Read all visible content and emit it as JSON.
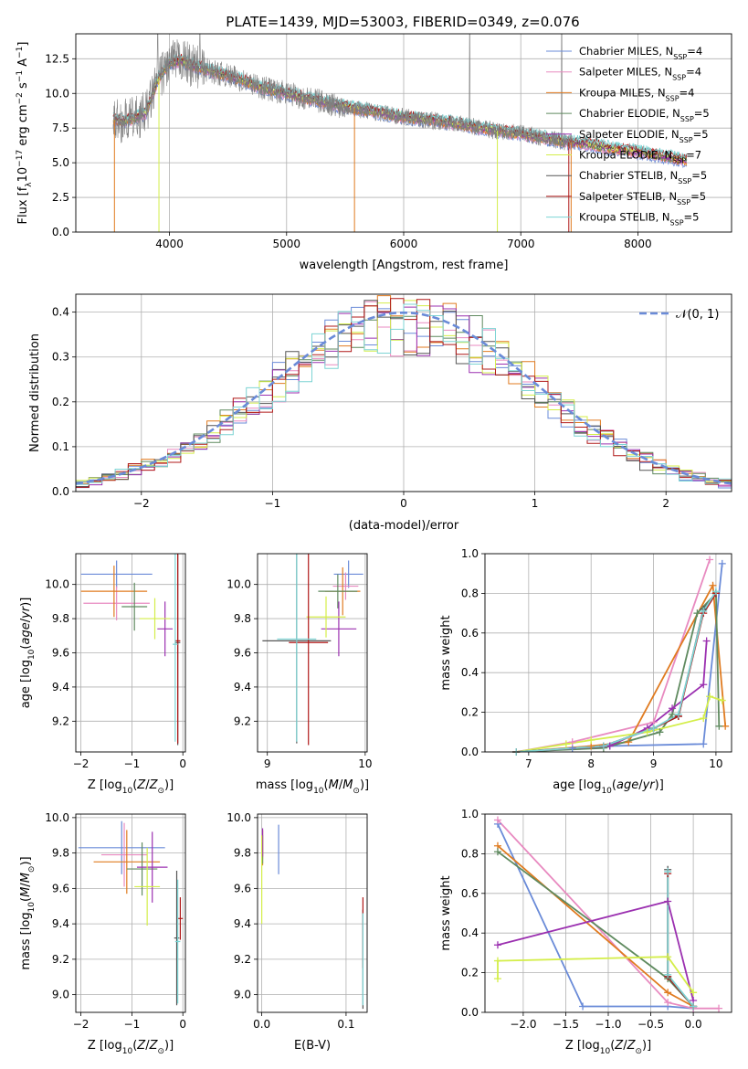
{
  "title": "PLATE=1439, MJD=53003, FIBERID=0349, z=0.076",
  "colors": {
    "Chabrier MILES": "#6a8bd8",
    "Salpeter MILES": "#e88ac0",
    "Kroupa MILES": "#e07b20",
    "Chabrier ELODIE": "#5f8a5f",
    "Salpeter ELODIE": "#9b30b0",
    "Kroupa ELODIE": "#d4ee4a",
    "Chabrier STELIB": "#555555",
    "Salpeter STELIB": "#b01818",
    "Kroupa STELIB": "#7dd4d4",
    "data": "#808080",
    "normal": "#6a8bd8",
    "grid": "#b0b0b0"
  },
  "chart_data": [
    {
      "type": "line",
      "name": "spectrum",
      "xlabel": "wavelength [Angstrom, rest frame]",
      "ylabel": "Flux [f_λ 10^-17 erg cm^-2 s^-1 A^-1]",
      "ylabel_parts": {
        "a": "Flux [f",
        "a_sub": "λ",
        "b": "10",
        "b_sup": "−17",
        "c": " erg cm",
        "c_sup": "−2",
        "d": " s",
        "d_sup": "−1",
        "e": " A",
        "e_sup": "−1",
        "f": "]"
      },
      "xlim": [
        3200,
        8800
      ],
      "ylim": [
        0,
        14.3
      ],
      "xticks": [
        4000,
        5000,
        6000,
        7000,
        8000
      ],
      "yticks": [
        0.0,
        2.5,
        5.0,
        7.5,
        10.0,
        12.5
      ],
      "legend_position": "upper right",
      "legend": [
        {
          "label": "Chabrier MILES, N",
          "sub": "SSP",
          "suffix": "=4"
        },
        {
          "label": "Salpeter MILES, N",
          "sub": "SSP",
          "suffix": "=4"
        },
        {
          "label": "Kroupa MILES, N",
          "sub": "SSP",
          "suffix": "=4"
        },
        {
          "label": "Chabrier ELODIE, N",
          "sub": "SSP",
          "suffix": "=5"
        },
        {
          "label": "Salpeter ELODIE, N",
          "sub": "SSP",
          "suffix": "=5"
        },
        {
          "label": "Kroupa ELODIE, N",
          "sub": "SSP",
          "suffix": "=7"
        },
        {
          "label": "Chabrier STELIB, N",
          "sub": "SSP",
          "suffix": "=5"
        },
        {
          "label": "Salpeter STELIB, N",
          "sub": "SSP",
          "suffix": "=5"
        },
        {
          "label": "Kroupa STELIB, N",
          "sub": "SSP",
          "suffix": "=5"
        }
      ],
      "continuum": {
        "x": [
          3520,
          3600,
          3700,
          3800,
          3900,
          4000,
          4100,
          4200,
          4400,
          4600,
          4800,
          5000,
          5200,
          5400,
          5600,
          5800,
          6000,
          6200,
          6400,
          6600,
          6800,
          7000,
          7200,
          7400,
          7600,
          7800,
          8000,
          8200,
          8400
        ],
        "y": [
          8.1,
          8.0,
          8.2,
          8.6,
          11.0,
          12.2,
          12.4,
          12.0,
          11.5,
          11.0,
          10.4,
          10.0,
          9.6,
          9.2,
          8.9,
          8.6,
          8.3,
          8.1,
          7.9,
          7.6,
          7.3,
          7.1,
          6.8,
          6.5,
          6.3,
          6.0,
          5.8,
          5.5,
          5.2
        ]
      },
      "data_range": [
        3520,
        7450
      ],
      "model_range": [
        3520,
        8420
      ]
    },
    {
      "type": "histogram",
      "name": "residuals",
      "xlabel": "(data-model)/error",
      "ylabel": "Normed distribution",
      "xlim": [
        -2.5,
        2.5
      ],
      "ylim": [
        0,
        0.44
      ],
      "xticks": [
        -2,
        -1,
        0,
        1,
        2
      ],
      "xticklabels": [
        "−2",
        "−1",
        "0",
        "1",
        "2"
      ],
      "yticks": [
        0.0,
        0.1,
        0.2,
        0.3,
        0.4
      ],
      "bin_width": 0.1,
      "overlay_label": "𝒩(0, 1)",
      "legend_position": "upper right"
    },
    {
      "type": "scatter",
      "name": "age-vs-Z",
      "xlabel": "Z [log10(Z/Z⊙)]",
      "ylabel": "age [log10(age/yr)]",
      "xlim": [
        -2.1,
        0.05
      ],
      "ylim": [
        9.02,
        10.18
      ],
      "xticks": [
        -2,
        -1,
        0
      ],
      "xticklabels": [
        "−2",
        "−1",
        "0"
      ],
      "yticks": [
        9.2,
        9.4,
        9.6,
        9.8,
        10.0
      ],
      "points": [
        {
          "model": "Chabrier MILES",
          "x": -1.3,
          "xerr": 0.7,
          "y": 10.06,
          "yerr": 0.08
        },
        {
          "model": "Salpeter MILES",
          "x": -1.3,
          "xerr": 0.65,
          "y": 9.89,
          "yerr": 0.1
        },
        {
          "model": "Kroupa MILES",
          "x": -1.35,
          "xerr": 0.65,
          "y": 9.96,
          "yerr": 0.15
        },
        {
          "model": "Chabrier ELODIE",
          "x": -0.95,
          "xerr": 0.25,
          "y": 9.87,
          "yerr": 0.14
        },
        {
          "model": "Salpeter ELODIE",
          "x": -0.35,
          "xerr": 0.15,
          "y": 9.74,
          "yerr": 0.16
        },
        {
          "model": "Kroupa ELODIE",
          "x": -0.55,
          "xerr": 0.3,
          "y": 9.8,
          "yerr": 0.12
        },
        {
          "model": "Chabrier STELIB",
          "x": -0.1,
          "xerr": 0.05,
          "y": 9.66,
          "yerr": 0.6
        },
        {
          "model": "Salpeter STELIB",
          "x": -0.1,
          "xerr": 0.05,
          "y": 9.67,
          "yerr": 0.6
        },
        {
          "model": "Kroupa STELIB",
          "x": -0.15,
          "xerr": 0.05,
          "y": 9.65,
          "yerr": 0.57
        }
      ]
    },
    {
      "type": "scatter",
      "name": "age-vs-mass",
      "xlabel": "mass [log10(M/M⊙)]",
      "ylabel": "",
      "xlim": [
        8.9,
        10.02
      ],
      "ylim": [
        9.02,
        10.18
      ],
      "xticks": [
        9,
        10
      ],
      "yticks": [
        9.2,
        9.4,
        9.6,
        9.8,
        10.0
      ],
      "points": [
        {
          "model": "Chabrier MILES",
          "x": 9.83,
          "xerr": 0.15,
          "y": 10.06,
          "yerr": 0.08
        },
        {
          "model": "Salpeter MILES",
          "x": 9.8,
          "xerr": 0.13,
          "y": 9.99,
          "yerr": 0.08
        },
        {
          "model": "Kroupa MILES",
          "x": 9.77,
          "xerr": 0.18,
          "y": 9.96,
          "yerr": 0.14
        },
        {
          "model": "Chabrier ELODIE",
          "x": 9.72,
          "xerr": 0.2,
          "y": 9.96,
          "yerr": 0.1
        },
        {
          "model": "Salpeter ELODIE",
          "x": 9.73,
          "xerr": 0.18,
          "y": 9.74,
          "yerr": 0.16
        },
        {
          "model": "Kroupa ELODIE",
          "x": 9.6,
          "xerr": 0.2,
          "y": 9.81,
          "yerr": 0.12
        },
        {
          "model": "Chabrier STELIB",
          "x": 9.3,
          "xerr": 0.35,
          "y": 9.67,
          "yerr": 0.6
        },
        {
          "model": "Salpeter STELIB",
          "x": 9.42,
          "xerr": 0.2,
          "y": 9.66,
          "yerr": 0.6
        },
        {
          "model": "Kroupa STELIB",
          "x": 9.3,
          "xerr": 0.2,
          "y": 9.68,
          "yerr": 0.6
        }
      ]
    },
    {
      "type": "line",
      "name": "mass-weight-vs-age",
      "xlabel": "age [log10(age/yr)]",
      "ylabel": "mass weight",
      "xlim": [
        6.3,
        10.25
      ],
      "ylim": [
        0,
        1.0
      ],
      "xticks": [
        7,
        8,
        9,
        10
      ],
      "yticks": [
        0.0,
        0.2,
        0.4,
        0.6,
        0.8,
        1.0
      ],
      "series": [
        {
          "model": "Chabrier MILES",
          "x": [
            6.8,
            7.7,
            8.3,
            9.8,
            10.1
          ],
          "y": [
            0.0,
            0.02,
            0.03,
            0.04,
            0.95
          ]
        },
        {
          "model": "Salpeter MILES",
          "x": [
            6.8,
            7.7,
            9.0,
            9.9
          ],
          "y": [
            0.0,
            0.05,
            0.15,
            0.97
          ]
        },
        {
          "model": "Kroupa MILES",
          "x": [
            6.8,
            8.0,
            8.6,
            9.95,
            10.15
          ],
          "y": [
            0.0,
            0.03,
            0.05,
            0.84,
            0.13
          ]
        },
        {
          "model": "Chabrier ELODIE",
          "x": [
            6.8,
            8.2,
            9.1,
            9.3,
            9.7,
            10.0,
            10.05
          ],
          "y": [
            0.0,
            0.02,
            0.1,
            0.19,
            0.7,
            0.8,
            0.13
          ]
        },
        {
          "model": "Salpeter ELODIE",
          "x": [
            6.8,
            8.3,
            8.9,
            9.3,
            9.8,
            9.85
          ],
          "y": [
            0.0,
            0.03,
            0.12,
            0.22,
            0.34,
            0.56
          ]
        },
        {
          "model": "Kroupa ELODIE",
          "x": [
            6.8,
            7.6,
            8.0,
            8.9,
            9.8,
            9.9,
            10.1
          ],
          "y": [
            0.0,
            0.04,
            0.06,
            0.1,
            0.17,
            0.28,
            0.26
          ]
        },
        {
          "model": "Chabrier STELIB",
          "x": [
            6.8,
            8.2,
            9.0,
            9.4,
            9.8,
            10.0
          ],
          "y": [
            0.0,
            0.03,
            0.12,
            0.18,
            0.72,
            0.8
          ]
        },
        {
          "model": "Salpeter STELIB",
          "x": [
            6.8,
            8.2,
            9.0,
            9.4,
            9.8,
            10.0
          ],
          "y": [
            0.0,
            0.03,
            0.12,
            0.18,
            0.7,
            0.8
          ]
        },
        {
          "model": "Kroupa STELIB",
          "x": [
            6.8,
            8.2,
            9.0,
            9.4,
            9.8,
            10.0
          ],
          "y": [
            0.0,
            0.03,
            0.12,
            0.19,
            0.71,
            0.81
          ]
        }
      ]
    },
    {
      "type": "scatter",
      "name": "mass-vs-Z",
      "xlabel": "Z [log10(Z/Z⊙)]",
      "ylabel": "mass [log10(M/M⊙)]",
      "xlim": [
        -2.1,
        0.05
      ],
      "ylim": [
        8.9,
        10.02
      ],
      "xticks": [
        -2,
        -1,
        0
      ],
      "xticklabels": [
        "−2",
        "−1",
        "0"
      ],
      "yticks": [
        9.0,
        9.2,
        9.4,
        9.6,
        9.8,
        10.0
      ],
      "points": [
        {
          "model": "Chabrier MILES",
          "x": -1.2,
          "xerr": 0.85,
          "y": 9.83,
          "yerr": 0.15
        },
        {
          "model": "Salpeter MILES",
          "x": -1.15,
          "xerr": 0.45,
          "y": 9.79,
          "yerr": 0.18
        },
        {
          "model": "Kroupa MILES",
          "x": -1.1,
          "xerr": 0.65,
          "y": 9.75,
          "yerr": 0.18
        },
        {
          "model": "Chabrier ELODIE",
          "x": -0.8,
          "xerr": 0.3,
          "y": 9.71,
          "yerr": 0.15
        },
        {
          "model": "Salpeter ELODIE",
          "x": -0.6,
          "xerr": 0.3,
          "y": 9.72,
          "yerr": 0.2
        },
        {
          "model": "Kroupa ELODIE",
          "x": -0.7,
          "xerr": 0.25,
          "y": 9.61,
          "yerr": 0.22
        },
        {
          "model": "Chabrier STELIB",
          "x": -0.12,
          "xerr": 0.05,
          "y": 9.32,
          "yerr": 0.38
        },
        {
          "model": "Salpeter STELIB",
          "x": -0.05,
          "xerr": 0.05,
          "y": 9.43,
          "yerr": 0.12
        },
        {
          "model": "Kroupa STELIB",
          "x": -0.1,
          "xerr": 0.05,
          "y": 9.3,
          "yerr": 0.35
        }
      ]
    },
    {
      "type": "scatter",
      "name": "mass-vs-EBV",
      "xlabel": "E(B-V)",
      "ylabel": "",
      "xlim": [
        -0.005,
        0.125
      ],
      "ylim": [
        8.9,
        10.02
      ],
      "xticks": [
        0.0,
        0.1
      ],
      "yticks": [
        9.0,
        9.2,
        9.4,
        9.6,
        9.8,
        10.0
      ],
      "points": [
        {
          "model": "Chabrier MILES",
          "x": 0.02,
          "xerr": 0,
          "y": 9.82,
          "yerr": 0.14
        },
        {
          "model": "Salpeter MILES",
          "x": 0.001,
          "xerr": 0,
          "y": 9.85,
          "yerr": 0.08
        },
        {
          "model": "Kroupa MILES",
          "x": 0.001,
          "xerr": 0,
          "y": 9.83,
          "yerr": 0.1
        },
        {
          "model": "Chabrier ELODIE",
          "x": 0.001,
          "xerr": 0,
          "y": 9.82,
          "yerr": 0.08
        },
        {
          "model": "Salpeter ELODIE",
          "x": 0.001,
          "xerr": 0,
          "y": 9.86,
          "yerr": 0.08
        },
        {
          "model": "Kroupa ELODIE",
          "x": 0.0,
          "xerr": 0,
          "y": 9.65,
          "yerr": 0.25
        },
        {
          "model": "Chabrier STELIB",
          "x": 0.12,
          "xerr": 0,
          "y": 9.2,
          "yerr": 0.28
        },
        {
          "model": "Salpeter STELIB",
          "x": 0.12,
          "xerr": 0,
          "y": 9.35,
          "yerr": 0.2
        },
        {
          "model": "Kroupa STELIB",
          "x": 0.12,
          "xerr": 0,
          "y": 9.2,
          "yerr": 0.26
        }
      ]
    },
    {
      "type": "line",
      "name": "mass-weight-vs-Z",
      "xlabel": "Z [log10(Z/Z⊙)]",
      "ylabel": "mass weight",
      "xlim": [
        -2.45,
        0.45
      ],
      "ylim": [
        0,
        1.0
      ],
      "xticks": [
        -2.0,
        -1.5,
        -1.0,
        -0.5,
        0.0
      ],
      "xticklabels": [
        "−2.0",
        "−1.5",
        "−1.0",
        "−0.5",
        "0.0"
      ],
      "yticks": [
        0.0,
        0.2,
        0.4,
        0.6,
        0.8,
        1.0
      ],
      "series": [
        {
          "model": "Chabrier MILES",
          "x": [
            -2.3,
            -1.3,
            -0.3,
            0.0
          ],
          "y": [
            0.95,
            0.03,
            0.03,
            0.02
          ]
        },
        {
          "model": "Salpeter MILES",
          "x": [
            -2.3,
            -0.3,
            0.0,
            0.3
          ],
          "y": [
            0.97,
            0.05,
            0.02,
            0.02
          ]
        },
        {
          "model": "Kroupa MILES",
          "x": [
            -2.3,
            -0.3,
            0.0
          ],
          "y": [
            0.84,
            0.1,
            0.03
          ]
        },
        {
          "model": "Chabrier ELODIE",
          "x": [
            -2.3,
            -0.3,
            0.0
          ],
          "y": [
            0.81,
            0.17,
            0.03
          ]
        },
        {
          "model": "Salpeter ELODIE",
          "x": [
            -2.3,
            -0.3,
            0.0
          ],
          "y": [
            0.34,
            0.56,
            0.06
          ]
        },
        {
          "model": "Kroupa ELODIE",
          "x": [
            -2.3,
            -2.3,
            -0.3,
            0.0
          ],
          "y": [
            0.17,
            0.26,
            0.28,
            0.1
          ]
        },
        {
          "model": "Chabrier STELIB",
          "x": [
            -0.3,
            -0.3,
            0.0
          ],
          "y": [
            0.72,
            0.18,
            0.03
          ]
        },
        {
          "model": "Salpeter STELIB",
          "x": [
            -0.3,
            -0.3,
            0.0
          ],
          "y": [
            0.7,
            0.18,
            0.03
          ]
        },
        {
          "model": "Kroupa STELIB",
          "x": [
            -0.3,
            -0.3,
            0.0
          ],
          "y": [
            0.71,
            0.19,
            0.03
          ]
        }
      ]
    }
  ]
}
